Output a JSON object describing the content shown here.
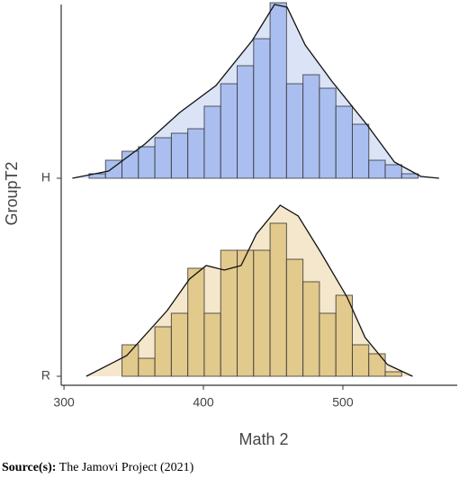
{
  "chart_data": {
    "type": "histogram-ridge",
    "x_label": "Math 2",
    "y_label": "GroupT2",
    "xlim": [
      298,
      582
    ],
    "xticks": [
      300,
      400,
      500
    ],
    "bins": [
      318,
      329.8,
      341.6,
      353.4,
      365.2,
      377,
      388.8,
      400.6,
      412.4,
      424.2,
      436,
      447.8,
      459.6,
      471.4,
      483.2,
      495,
      506.8,
      518.6,
      530.4,
      542.2,
      554
    ],
    "categories": [
      "H",
      "R"
    ],
    "groups": [
      {
        "name": "H",
        "color": "#aabff0",
        "density_color": "#dbe3f7",
        "counts": [
          1,
          4,
          6,
          7,
          9,
          10,
          11,
          16,
          21,
          25,
          31,
          39,
          21,
          23,
          20,
          16,
          12,
          4,
          3,
          1
        ],
        "density_x": [
          306,
          332,
          358,
          383,
          409,
          435,
          451,
          460,
          473,
          492,
          518,
          537,
          556,
          569
        ],
        "density_y": [
          0,
          1.6,
          7.6,
          14.6,
          20.6,
          30.6,
          38.6,
          38,
          29.6,
          21.6,
          11.6,
          3.6,
          0.4,
          0
        ]
      },
      {
        "name": "R",
        "color": "#e2c98c",
        "density_color": "#f4e7cb",
        "counts": [
          0,
          0,
          7,
          4,
          11,
          14,
          24,
          14,
          28,
          28,
          28,
          34,
          26,
          21,
          14,
          18,
          7,
          5,
          1,
          0
        ],
        "density_x": [
          316,
          345,
          374,
          390,
          402,
          415,
          427,
          438,
          455,
          468,
          484,
          503,
          516,
          532,
          550
        ],
        "density_y": [
          0,
          4.6,
          14.6,
          21.6,
          24.6,
          23.6,
          24.6,
          31.6,
          38,
          35.6,
          27.6,
          17.6,
          8.6,
          2.6,
          0
        ]
      }
    ]
  },
  "source": {
    "label": "Source(s):",
    "text": "The Jamovi Project (2021)"
  }
}
